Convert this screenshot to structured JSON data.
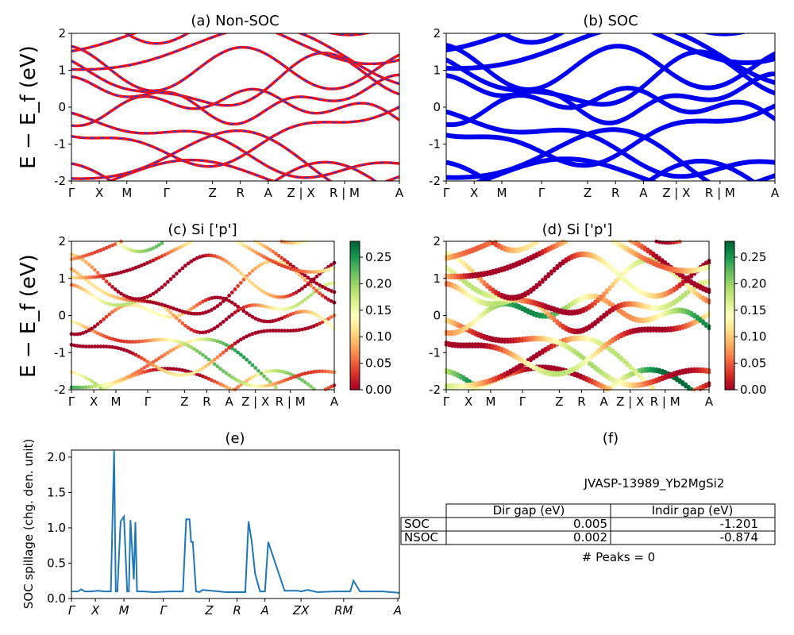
{
  "colors": {
    "nonsoc_red": "#e8141d",
    "nonsoc_blue": "#3232cc",
    "soc_blue": "#0000ee",
    "spillage_line": "#1f77b4"
  },
  "kpath_labels": [
    "Γ",
    "X",
    "M",
    "Γ",
    "Z",
    "R",
    "A",
    "Z | X",
    "R | M",
    "A"
  ],
  "spillage_kpath_labels": [
    "Γ",
    "X",
    "M",
    "Γ",
    "Z",
    "R",
    "A",
    "ZX",
    "RM",
    "A"
  ],
  "y_label_band": "E − E_f (eV)",
  "panels": {
    "a": {
      "title": "(a) Non-SOC"
    },
    "b": {
      "title": "(b) SOC"
    },
    "c": {
      "title": "(c)  Si ['p']"
    },
    "d": {
      "title": "(d) Si ['p']"
    },
    "e": {
      "title": "(e)",
      "ylabel": "SOC spillage (chg. den. unit)"
    },
    "f": {
      "title": "(f)"
    }
  },
  "colorbar": {
    "cmap": "RdYlGn",
    "ticks": [
      "0.00",
      "0.05",
      "0.10",
      "0.15",
      "0.20",
      "0.25"
    ],
    "range": [
      0,
      0.28
    ]
  },
  "info_table": {
    "material": "JVASP-13989_Yb2MgSi2",
    "headers": [
      "",
      "Dir gap (eV)",
      "Indir gap (eV)"
    ],
    "rows": [
      {
        "label": "SOC",
        "dir_gap": "0.005",
        "indir_gap": "-1.201"
      },
      {
        "label": "NSOC",
        "dir_gap": "0.002",
        "indir_gap": "-0.874"
      }
    ],
    "peaks": "# Peaks = 0"
  },
  "chart_data": [
    {
      "type": "line",
      "panel": "a",
      "title": "(a) Non-SOC",
      "ylabel": "E − E_f (eV)",
      "ylim": [
        -2,
        2
      ],
      "yticks": [
        -2,
        -1,
        0,
        1,
        2
      ],
      "xticks": [
        "Γ",
        "X",
        "M",
        "Γ",
        "Z",
        "R",
        "A",
        "Z | X",
        "R | M",
        "A"
      ],
      "xtick_pos": [
        0,
        0.085,
        0.169,
        0.29,
        0.43,
        0.515,
        0.6,
        0.7,
        0.833,
        1.0
      ]
    },
    {
      "type": "line",
      "panel": "b",
      "title": "(b) SOC",
      "ylim": [
        -2,
        2
      ],
      "yticks": [
        -2,
        -1,
        0,
        1,
        2
      ],
      "xticks": [
        "Γ",
        "X",
        "M",
        "Γ",
        "Z",
        "R",
        "A",
        "Z | X",
        "R | M",
        "A"
      ]
    },
    {
      "type": "scatter",
      "panel": "c",
      "title": "(c)  Si ['p']",
      "ylabel": "E − E_f (eV)",
      "ylim": [
        -2,
        2
      ],
      "colorbar_range": [
        0,
        0.28
      ]
    },
    {
      "type": "scatter",
      "panel": "d",
      "title": "(d) Si ['p']",
      "ylim": [
        -2,
        2
      ],
      "colorbar_range": [
        0,
        0.28
      ]
    },
    {
      "type": "line",
      "panel": "e",
      "title": "(e)",
      "ylabel": "SOC spillage (chg. den. unit)",
      "ylim": [
        0,
        2.1
      ],
      "yticks": [
        0.0,
        0.5,
        1.0,
        1.5,
        2.0
      ],
      "x": [
        0,
        0.02,
        0.03,
        0.04,
        0.06,
        0.08,
        0.1,
        0.12,
        0.13,
        0.135,
        0.14,
        0.15,
        0.16,
        0.17,
        0.175,
        0.18,
        0.19,
        0.195,
        0.2,
        0.205,
        0.21,
        0.22,
        0.25,
        0.3,
        0.34,
        0.35,
        0.36,
        0.365,
        0.37,
        0.38,
        0.39,
        0.4,
        0.45,
        0.47,
        0.5,
        0.53,
        0.54,
        0.55,
        0.56,
        0.575,
        0.58,
        0.59,
        0.6,
        0.65,
        0.69,
        0.7,
        0.72,
        0.75,
        0.8,
        0.85,
        0.86,
        0.88,
        0.9,
        0.95,
        1.0
      ],
      "y": [
        0.1,
        0.1,
        0.13,
        0.1,
        0.1,
        0.11,
        0.1,
        0.1,
        2.09,
        0.1,
        0.1,
        1.09,
        1.16,
        0.1,
        0.1,
        1.11,
        0.27,
        1.08,
        0.1,
        0.1,
        0.1,
        0.1,
        0.09,
        0.1,
        0.1,
        1.12,
        1.12,
        0.8,
        0.8,
        0.1,
        0.09,
        0.12,
        0.1,
        0.09,
        0.09,
        0.09,
        1.09,
        0.8,
        0.35,
        0.1,
        0.1,
        0.1,
        0.8,
        0.11,
        0.11,
        0.1,
        0.12,
        0.09,
        0.1,
        0.1,
        0.25,
        0.1,
        0.1,
        0.1,
        0.08
      ]
    }
  ]
}
